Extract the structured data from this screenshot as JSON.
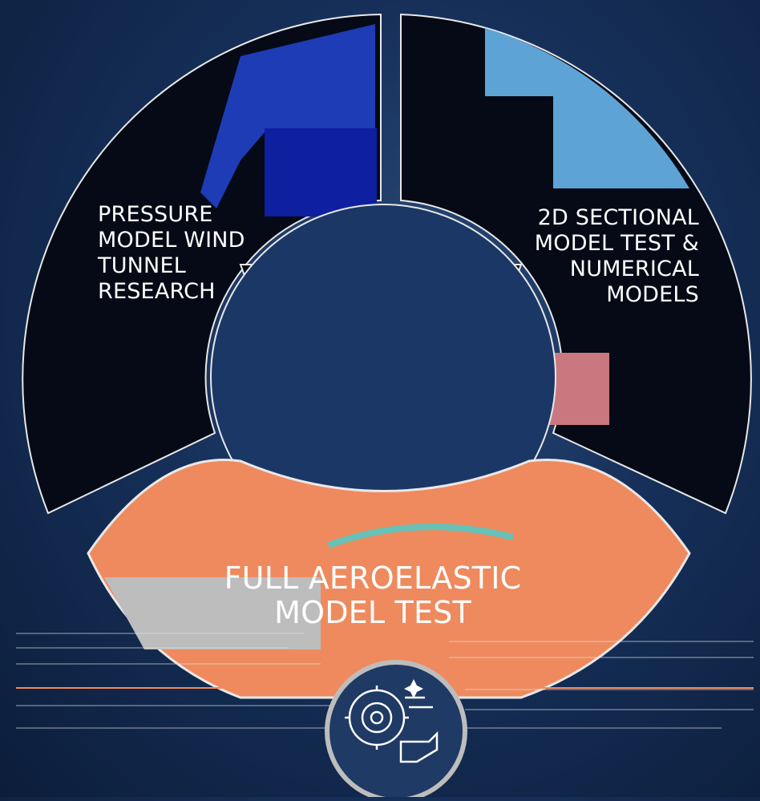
{
  "segments": [
    {
      "id": "pressure",
      "lines": [
        "PRESSURE",
        "MODEL WIND",
        "TUNNEL",
        "RESEARCH"
      ],
      "color": "#1f3fbf"
    },
    {
      "id": "sectional",
      "lines": [
        "2D SECTIONAL",
        "MODEL TEST &",
        "NUMERICAL",
        "MODELS"
      ],
      "color": "#5ea3d6"
    },
    {
      "id": "aeroelastic",
      "lines": [
        "FULL AEROELASTIC",
        "MODEL TEST"
      ],
      "color": "#ef8a5e"
    }
  ],
  "center_icon": {
    "name": "gear-wind-icon"
  },
  "colors": {
    "background": "#16305a",
    "ring_dark": "#050a16",
    "blue": "#1f3fbf",
    "light_blue": "#5ea3d6",
    "orange": "#ef8a5e",
    "gray": "#bdbdbd",
    "rose": "#c8787e"
  }
}
